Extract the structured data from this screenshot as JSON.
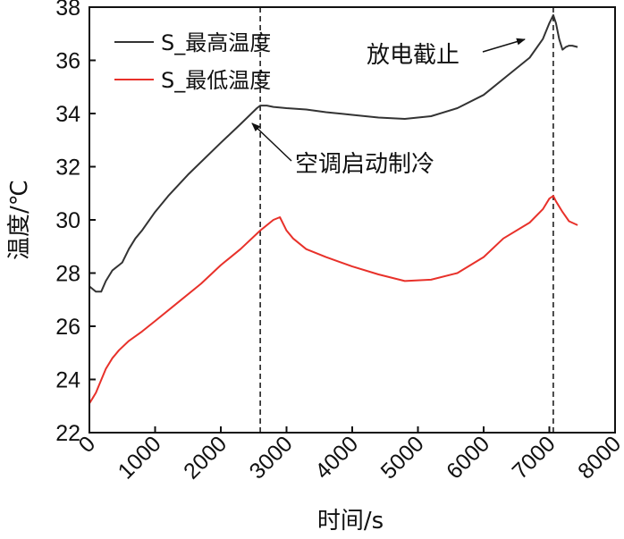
{
  "chart_data": {
    "type": "line",
    "xlabel": "时间/s",
    "ylabel": "温度/℃",
    "xlim": [
      0,
      8000
    ],
    "ylim": [
      22,
      38
    ],
    "x_ticks": [
      0,
      1000,
      2000,
      3000,
      4000,
      5000,
      6000,
      7000,
      8000
    ],
    "y_ticks": [
      22,
      24,
      26,
      28,
      30,
      32,
      34,
      36,
      38
    ],
    "legend_position": "top-left",
    "series": [
      {
        "name": "S_最高温度",
        "color": "#333333",
        "points": [
          [
            0,
            27.5
          ],
          [
            50,
            27.4
          ],
          [
            100,
            27.3
          ],
          [
            180,
            27.3
          ],
          [
            250,
            27.7
          ],
          [
            350,
            28.1
          ],
          [
            450,
            28.3
          ],
          [
            500,
            28.4
          ],
          [
            600,
            28.9
          ],
          [
            700,
            29.3
          ],
          [
            800,
            29.6
          ],
          [
            1000,
            30.3
          ],
          [
            1200,
            30.9
          ],
          [
            1500,
            31.7
          ],
          [
            2000,
            32.9
          ],
          [
            2300,
            33.6
          ],
          [
            2550,
            34.2
          ],
          [
            2600,
            34.3
          ],
          [
            2700,
            34.3
          ],
          [
            2800,
            34.25
          ],
          [
            3000,
            34.2
          ],
          [
            3300,
            34.15
          ],
          [
            3600,
            34.05
          ],
          [
            4000,
            33.95
          ],
          [
            4400,
            33.85
          ],
          [
            4800,
            33.8
          ],
          [
            5200,
            33.9
          ],
          [
            5600,
            34.2
          ],
          [
            6000,
            34.7
          ],
          [
            6400,
            35.5
          ],
          [
            6700,
            36.1
          ],
          [
            6900,
            36.8
          ],
          [
            7000,
            37.4
          ],
          [
            7060,
            37.7
          ],
          [
            7100,
            37.4
          ],
          [
            7150,
            36.8
          ],
          [
            7200,
            36.4
          ],
          [
            7250,
            36.5
          ],
          [
            7300,
            36.55
          ],
          [
            7350,
            36.55
          ],
          [
            7430,
            36.5
          ]
        ]
      },
      {
        "name": "S_最低温度",
        "color": "#e8312a",
        "points": [
          [
            0,
            23.1
          ],
          [
            50,
            23.3
          ],
          [
            100,
            23.5
          ],
          [
            150,
            23.8
          ],
          [
            250,
            24.4
          ],
          [
            350,
            24.8
          ],
          [
            450,
            25.1
          ],
          [
            600,
            25.45
          ],
          [
            800,
            25.8
          ],
          [
            1000,
            26.2
          ],
          [
            1300,
            26.8
          ],
          [
            1700,
            27.6
          ],
          [
            2000,
            28.3
          ],
          [
            2300,
            28.9
          ],
          [
            2600,
            29.6
          ],
          [
            2800,
            30.0
          ],
          [
            2900,
            30.1
          ],
          [
            3000,
            29.6
          ],
          [
            3100,
            29.3
          ],
          [
            3300,
            28.9
          ],
          [
            3600,
            28.6
          ],
          [
            4000,
            28.25
          ],
          [
            4400,
            27.95
          ],
          [
            4800,
            27.7
          ],
          [
            5200,
            27.75
          ],
          [
            5600,
            28.0
          ],
          [
            6000,
            28.6
          ],
          [
            6300,
            29.3
          ],
          [
            6700,
            29.9
          ],
          [
            6900,
            30.4
          ],
          [
            7000,
            30.8
          ],
          [
            7060,
            30.9
          ],
          [
            7100,
            30.7
          ],
          [
            7200,
            30.3
          ],
          [
            7300,
            29.95
          ],
          [
            7430,
            29.8
          ]
        ]
      }
    ],
    "annotations": [
      {
        "text": "空调启动制冷",
        "target_x": 2600,
        "target_y": 34.3
      },
      {
        "text": "放电截止",
        "target_x": 7060,
        "target_y": 37.7
      }
    ],
    "vlines": [
      2600,
      7060
    ]
  }
}
